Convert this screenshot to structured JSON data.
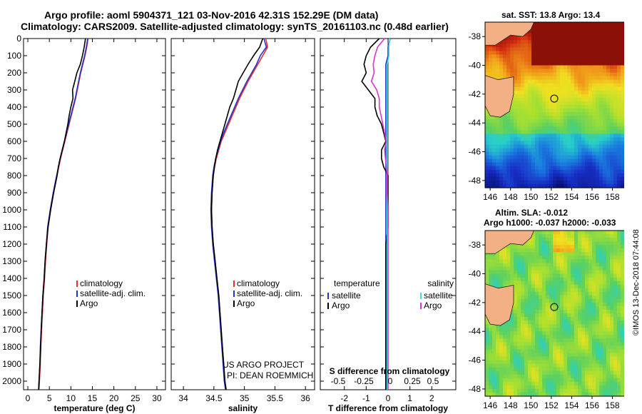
{
  "header": {
    "title_line1": "Argo profile: aoml 5904371_121 03-Nov-2016 42.31S 152.29E (DM data)",
    "title_line2": "Climatology: CARS2009. Satellite-adjusted climatology: synTS_20161103.nc (0.48d earlier)"
  },
  "credits": {
    "project": "US ARGO PROJECT",
    "pi": "PI: DEAN ROEMMICH",
    "stamp": "©IMOS 13-Dec-2018 07:44:08"
  },
  "colors": {
    "climatology": "#e8312a",
    "satellite": "#2233cc",
    "argo": "#000000",
    "salinity_satellite": "#44dddd",
    "salinity_argo": "#dd33cc",
    "land": "#f2b084",
    "coast": "#222222"
  },
  "depth_ticks": [
    0,
    100,
    200,
    300,
    400,
    500,
    600,
    700,
    800,
    900,
    1000,
    1100,
    1200,
    1300,
    1400,
    1500,
    1600,
    1700,
    1800,
    1900,
    2000
  ],
  "maps": {
    "sst": {
      "title": "sat. SST: 13.8 Argo: 13.4",
      "lat_ticks": [
        "-38",
        "-40",
        "-42",
        "-44",
        "-46",
        "-48"
      ],
      "lon_ticks": [
        "146",
        "148",
        "150",
        "152",
        "154",
        "156",
        "158"
      ]
    },
    "sla": {
      "title_line1": "Altim. SLA: -0.012",
      "title_line2": "Argo h1000: -0.037 h2000: -0.033",
      "lat_ticks": [
        "-38",
        "-40",
        "-42",
        "-44",
        "-46",
        "-48"
      ],
      "lon_ticks": [
        "146",
        "148",
        "150",
        "152",
        "154",
        "156",
        "158"
      ]
    }
  },
  "chart_data": [
    {
      "type": "line",
      "xlabel": "temperature (deg C)",
      "ylabel": "",
      "xlim": [
        -1,
        32
      ],
      "ylim": [
        2050,
        0
      ],
      "xticks": [
        "0",
        "5",
        "10",
        "15",
        "20",
        "25",
        "30"
      ],
      "legend_labels": [
        "climatology",
        "satellite-adj. clim.",
        "Argo"
      ],
      "depth": [
        0,
        50,
        100,
        150,
        200,
        250,
        300,
        350,
        400,
        450,
        500,
        550,
        600,
        650,
        700,
        750,
        800,
        900,
        1000,
        1100,
        1200,
        1300,
        1400,
        1500,
        1600,
        1700,
        1800,
        1900,
        2000,
        2050
      ],
      "series": [
        {
          "name": "climatology",
          "values": [
            14.0,
            13.7,
            13.3,
            12.8,
            12.3,
            11.9,
            11.5,
            11.1,
            10.6,
            10.1,
            9.6,
            9.1,
            8.6,
            8.1,
            7.6,
            7.2,
            6.8,
            6.0,
            5.3,
            4.7,
            4.4,
            4.1,
            3.9,
            3.6,
            3.4,
            3.2,
            3.0,
            2.9,
            2.7,
            2.6
          ]
        },
        {
          "name": "satellite-adj. clim.",
          "values": [
            13.9,
            13.6,
            13.2,
            12.7,
            12.2,
            11.8,
            11.4,
            11.0,
            10.5,
            10.0,
            9.5,
            9.0,
            8.5,
            8.0,
            7.5,
            7.1,
            6.7,
            5.9,
            5.2,
            4.6,
            4.3,
            4.0,
            3.8,
            3.5,
            3.3,
            3.1,
            2.9,
            2.8,
            2.6,
            2.5
          ]
        },
        {
          "name": "Argo",
          "values": [
            13.4,
            13.1,
            12.7,
            12.2,
            11.4,
            10.9,
            10.4,
            10.5,
            10.0,
            9.6,
            9.3,
            8.9,
            8.5,
            8.0,
            7.5,
            7.1,
            6.8,
            6.0,
            5.3,
            4.7,
            4.3,
            4.0,
            3.8,
            3.5,
            3.3,
            3.1,
            3.0,
            2.8,
            2.6,
            2.5
          ]
        }
      ]
    },
    {
      "type": "line",
      "xlabel": "salinity",
      "ylabel": "",
      "xlim": [
        33.8,
        36.15
      ],
      "ylim": [
        2050,
        0
      ],
      "xticks": [
        "34",
        "34.5",
        "35",
        "35.5",
        "36"
      ],
      "legend_labels": [
        "climatology",
        "satellite-adj. clim.",
        "Argo"
      ],
      "depth": [
        0,
        50,
        100,
        150,
        200,
        250,
        300,
        350,
        400,
        450,
        500,
        550,
        600,
        650,
        700,
        750,
        800,
        900,
        1000,
        1100,
        1200,
        1300,
        1400,
        1500,
        1600,
        1700,
        1800,
        1900,
        2000,
        2050
      ],
      "series": [
        {
          "name": "climatology",
          "values": [
            35.35,
            35.38,
            35.3,
            35.22,
            35.14,
            35.06,
            34.99,
            34.92,
            34.86,
            34.8,
            34.74,
            34.68,
            34.62,
            34.58,
            34.54,
            34.51,
            34.49,
            34.47,
            34.46,
            34.47,
            34.49,
            34.52,
            34.55,
            34.58,
            34.6,
            34.62,
            34.64,
            34.66,
            34.68,
            34.7
          ]
        },
        {
          "name": "satellite-adj. clim.",
          "values": [
            35.32,
            35.36,
            35.26,
            35.2,
            35.12,
            35.04,
            34.97,
            34.9,
            34.84,
            34.78,
            34.72,
            34.66,
            34.61,
            34.57,
            34.53,
            34.5,
            34.48,
            34.46,
            34.45,
            34.46,
            34.48,
            34.51,
            34.54,
            34.57,
            34.59,
            34.61,
            34.63,
            34.65,
            34.67,
            34.69
          ]
        },
        {
          "name": "Argo",
          "values": [
            35.3,
            35.25,
            35.15,
            35.06,
            34.98,
            34.9,
            34.86,
            34.82,
            34.76,
            34.72,
            34.68,
            34.64,
            34.6,
            34.56,
            34.53,
            34.51,
            34.49,
            34.47,
            34.46,
            34.47,
            34.49,
            34.52,
            34.55,
            34.58,
            34.6,
            34.62,
            34.64,
            34.66,
            34.68,
            34.7
          ]
        }
      ]
    },
    {
      "type": "line",
      "xlabel": "T difference from climatology",
      "ylabel": "",
      "xlim": [
        -3.1,
        3.1
      ],
      "ylim": [
        2050,
        0
      ],
      "xticks": [
        "-2",
        "-1",
        "0",
        "1",
        "2"
      ],
      "secondary_xlabel": "S difference from climatology",
      "secondary_xticks": [
        "-0.5",
        "-0.25",
        "0",
        "0.25",
        "0.5"
      ],
      "legend_temperature": "temperature",
      "legend_salinity": "salinity",
      "legend_labels": [
        "satellite",
        "Argo"
      ],
      "depth": [
        0,
        50,
        100,
        150,
        200,
        250,
        300,
        350,
        400,
        450,
        500,
        550,
        600,
        650,
        700,
        750,
        800,
        900,
        1000,
        1100,
        1200,
        1300,
        1400,
        1500,
        1600,
        1700,
        1800,
        1900,
        2000,
        2050
      ],
      "series": [
        {
          "name": "temperature satellite",
          "values": [
            0.1,
            0.0,
            0.0,
            -0.1,
            -0.1,
            -0.1,
            -0.1,
            -0.1,
            -0.1,
            -0.1,
            -0.1,
            -0.1,
            -0.1,
            -0.1,
            -0.1,
            -0.1,
            -0.1,
            -0.1,
            -0.1,
            -0.1,
            -0.1,
            -0.1,
            -0.1,
            -0.1,
            -0.1,
            -0.1,
            -0.1,
            -0.1,
            -0.1,
            -0.1
          ]
        },
        {
          "name": "temperature Argo",
          "values": [
            -0.4,
            -0.8,
            -1.0,
            -1.1,
            -1.0,
            -1.2,
            -0.9,
            -0.6,
            -0.6,
            -0.5,
            -0.3,
            -0.2,
            -0.1,
            -0.3,
            -0.3,
            -0.2,
            0.0,
            0.0,
            0.0,
            0.0,
            -0.1,
            -0.1,
            -0.1,
            -0.1,
            -0.1,
            -0.1,
            -0.1,
            -0.1,
            -0.1,
            -0.1
          ]
        },
        {
          "name": "salinity satellite",
          "values": [
            0.02,
            0.01,
            0.01,
            -0.01,
            -0.01,
            -0.01,
            -0.01,
            -0.01,
            -0.01,
            -0.01,
            -0.01,
            -0.01,
            -0.01,
            -0.01,
            -0.01,
            -0.01,
            -0.01,
            -0.01,
            -0.01,
            -0.01,
            -0.01,
            -0.01,
            -0.01,
            -0.01,
            -0.01,
            -0.01,
            -0.01,
            -0.01,
            -0.01,
            -0.01
          ]
        },
        {
          "name": "salinity Argo",
          "values": [
            -0.04,
            -0.12,
            -0.15,
            -0.17,
            -0.16,
            -0.19,
            -0.13,
            -0.1,
            -0.1,
            -0.08,
            -0.06,
            -0.04,
            -0.02,
            -0.04,
            -0.03,
            -0.02,
            -0.01,
            -0.01,
            0.0,
            0.0,
            0.0,
            0.0,
            0.0,
            0.0,
            0.0,
            0.0,
            0.0,
            0.0,
            0.0,
            0.0
          ]
        }
      ]
    }
  ]
}
